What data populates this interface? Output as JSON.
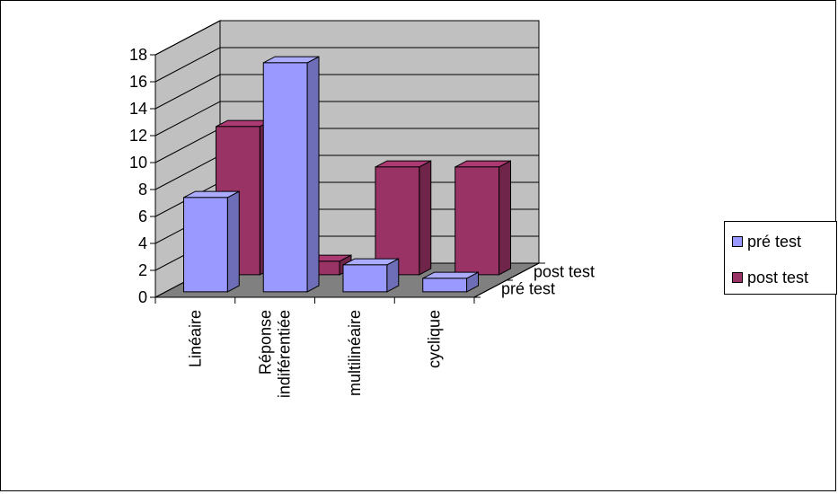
{
  "chart_data": {
    "type": "bar",
    "categories": [
      "Linéaire",
      "Réponse indiférentiée",
      "multilinéaire",
      "cyclique"
    ],
    "series": [
      {
        "name": "pré test",
        "values": [
          7,
          17,
          2,
          1
        ],
        "color": "#9999FF"
      },
      {
        "name": "post test",
        "values": [
          11,
          1,
          8,
          8
        ],
        "color": "#993366"
      }
    ],
    "depth_labels": [
      "post test",
      "pré test"
    ],
    "y_ticks": [
      "0",
      "2",
      "4",
      "6",
      "8",
      "10",
      "12",
      "14",
      "16",
      "18"
    ],
    "ylim": [
      0,
      18
    ],
    "grid": true,
    "legend_position": "right",
    "colors": {
      "wall": "#C0C0C0",
      "floor": "#808080",
      "grid": "#000000"
    }
  }
}
